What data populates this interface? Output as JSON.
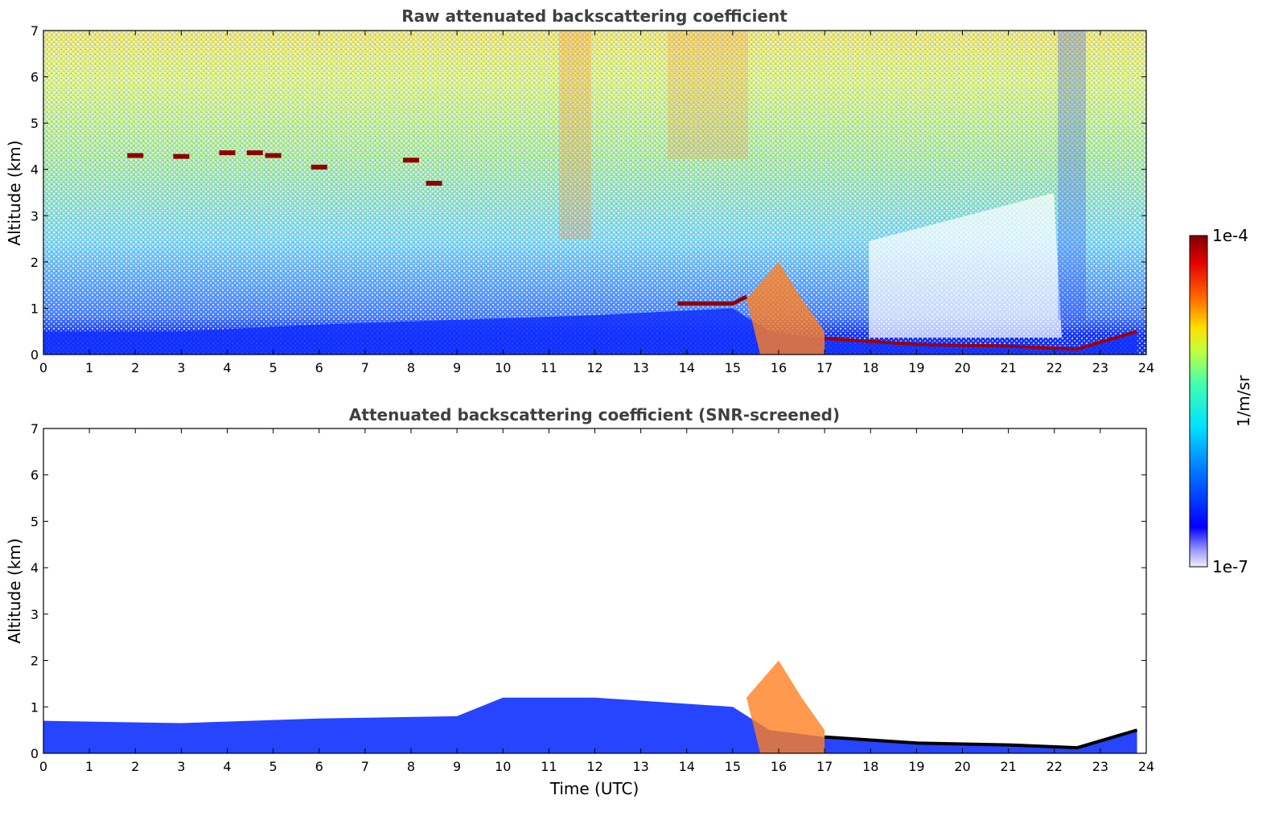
{
  "chart_data": [
    {
      "type": "heatmap",
      "title": "Raw attenuated backscattering coefficient",
      "xlabel": "",
      "ylabel": "Altitude (km)",
      "xlim": [
        0,
        24
      ],
      "ylim": [
        0,
        7
      ],
      "xticks": [
        "0",
        "1",
        "2",
        "3",
        "4",
        "5",
        "6",
        "7",
        "8",
        "9",
        "10",
        "11",
        "12",
        "13",
        "14",
        "15",
        "16",
        "17",
        "18",
        "19",
        "20",
        "21",
        "22",
        "23",
        "24"
      ],
      "yticks": [
        "0",
        "1",
        "2",
        "3",
        "4",
        "5",
        "6",
        "7"
      ],
      "features": {
        "boundary_layer_top_km": [
          [
            0,
            0.5
          ],
          [
            3,
            0.5
          ],
          [
            6,
            0.65
          ],
          [
            9,
            0.75
          ],
          [
            12,
            0.85
          ],
          [
            15,
            1.0
          ],
          [
            15.8,
            0.5
          ],
          [
            17,
            0.35
          ],
          [
            19,
            0.22
          ],
          [
            21,
            0.18
          ],
          [
            22.5,
            0.12
          ],
          [
            23.8,
            0.5
          ]
        ],
        "cloud_layer": [
          [
            2,
            4.3
          ],
          [
            3,
            4.28
          ],
          [
            4,
            4.36
          ],
          [
            4.6,
            4.36
          ],
          [
            5,
            4.3
          ],
          [
            6,
            4.05
          ],
          [
            8,
            4.2
          ],
          [
            8.5,
            3.7
          ]
        ],
        "lowcloud": [
          [
            13.8,
            1.1
          ],
          [
            15.0,
            1.1
          ],
          [
            15.3,
            1.25
          ]
        ]
      }
    },
    {
      "type": "heatmap",
      "title": "Attenuated backscattering coefficient (SNR-screened)",
      "xlabel": "Time (UTC)",
      "ylabel": "Altitude (km)",
      "xlim": [
        0,
        24
      ],
      "ylim": [
        0,
        7
      ],
      "xticks": [
        "0",
        "1",
        "2",
        "3",
        "4",
        "5",
        "6",
        "7",
        "8",
        "9",
        "10",
        "11",
        "12",
        "13",
        "14",
        "15",
        "16",
        "17",
        "18",
        "19",
        "20",
        "21",
        "22",
        "23",
        "24"
      ],
      "yticks": [
        "0",
        "1",
        "2",
        "3",
        "4",
        "5",
        "6",
        "7"
      ],
      "features": {
        "boundary_layer_top_km": [
          [
            0,
            0.7
          ],
          [
            3,
            0.65
          ],
          [
            6,
            0.75
          ],
          [
            9,
            0.8
          ],
          [
            10,
            1.2
          ],
          [
            12,
            1.2
          ],
          [
            15,
            1.0
          ],
          [
            15.8,
            0.5
          ],
          [
            17,
            0.35
          ],
          [
            19,
            0.22
          ],
          [
            21,
            0.18
          ],
          [
            22.5,
            0.12
          ],
          [
            23.8,
            0.5
          ]
        ]
      }
    }
  ],
  "colorbar": {
    "max_label": "1e-4",
    "min_label": "1e-7",
    "unit_label": "1/m/sr",
    "colormap": "jet"
  },
  "colors": {
    "low": "#0000ff",
    "mid": "#00ffff",
    "high": "#ffff00",
    "peak": "#800000"
  }
}
